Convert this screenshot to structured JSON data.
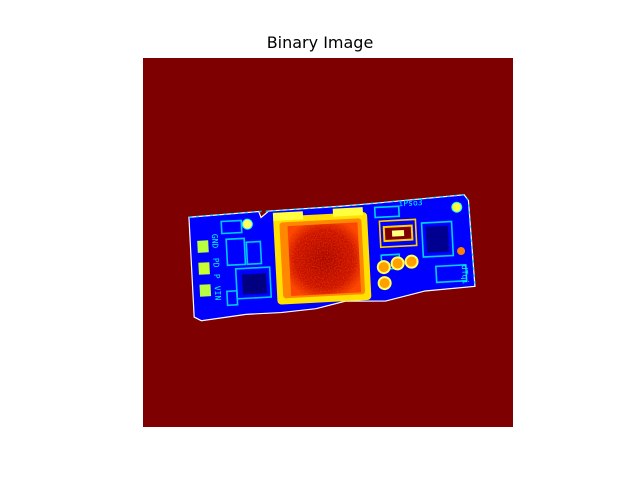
{
  "figure": {
    "title": "Binary Image"
  },
  "image": {
    "colormap": "jet",
    "background_color": "#7f0000",
    "subject": "circuit-board-module"
  },
  "board": {
    "pin_labels": [
      "GND",
      "PD",
      "P",
      "VIN"
    ],
    "top_marking": "iPso3",
    "side_marking": "dTqi"
  }
}
